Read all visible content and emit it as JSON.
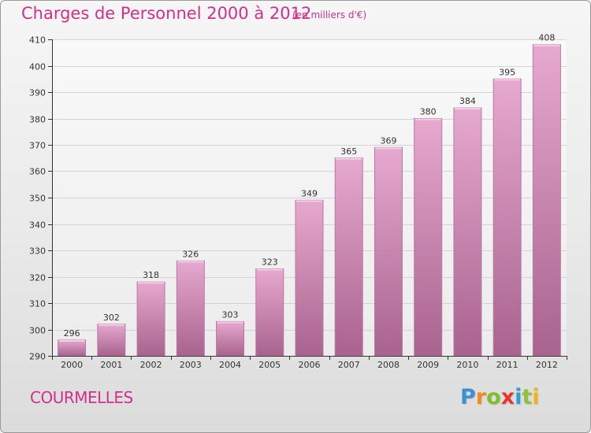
{
  "title": "Charges de Personnel 2000 à 2012",
  "subtitle": "(en milliers d'€)",
  "place_name": "COURMELLES",
  "brand": {
    "letters": [
      "P",
      "r",
      "o",
      "x",
      "i",
      "t",
      "i"
    ],
    "colors": [
      "#3d8fd6",
      "#f28a1c",
      "#7fbf2a",
      "#e8372f",
      "#2a9fd8",
      "#8fc33a",
      "#f2b21c"
    ]
  },
  "colors": {
    "bar_top": "#e6a9cf",
    "bar_bottom": "#a8638e",
    "bar_side": "#b97aa1",
    "grid": "#d4d4d4",
    "axis": "#333333",
    "text": "#333333",
    "accent": "#d1308c"
  },
  "chart_data": {
    "type": "bar",
    "categories": [
      "2000",
      "2001",
      "2002",
      "2003",
      "2004",
      "2005",
      "2006",
      "2007",
      "2008",
      "2009",
      "2010",
      "2011",
      "2012"
    ],
    "values": [
      296,
      302,
      318,
      326,
      303,
      323,
      349,
      365,
      369,
      380,
      384,
      395,
      408
    ],
    "yticks": [
      290,
      300,
      310,
      320,
      330,
      340,
      350,
      360,
      370,
      380,
      390,
      400,
      410
    ],
    "ylim": [
      290,
      410
    ],
    "grid": true,
    "legend": "none"
  }
}
